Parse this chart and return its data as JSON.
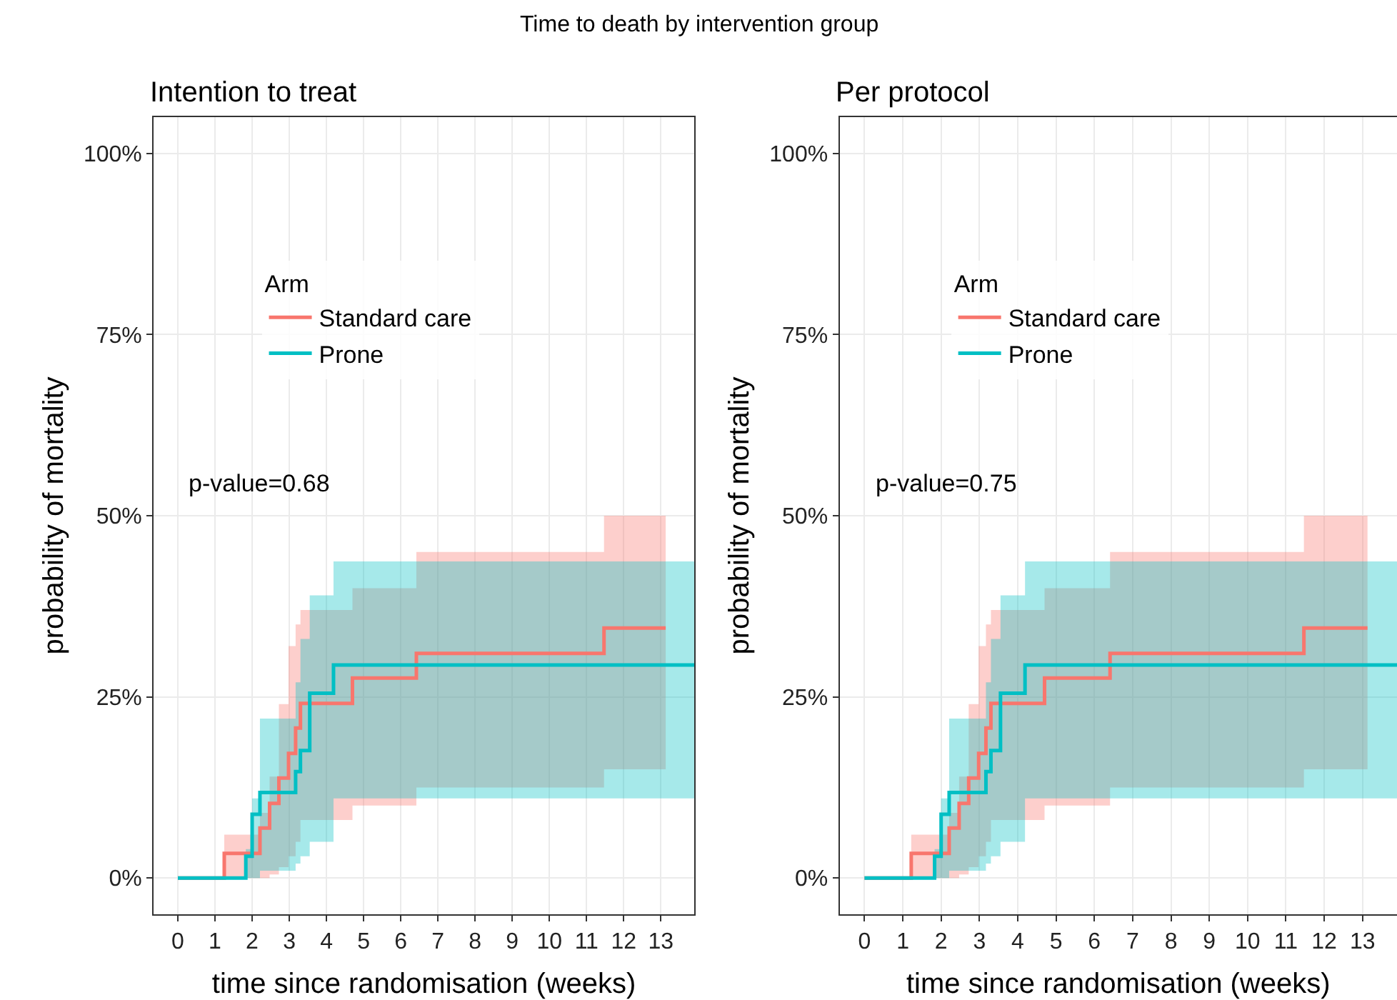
{
  "chart_data": [
    {
      "type": "step",
      "title": "Time to death by intervention group",
      "subtitle": "Intention to treat",
      "xlabel": "time since randomisation (weeks)",
      "ylabel": "probability of mortality",
      "legend_title": "Arm",
      "legend": "top left",
      "grid": true,
      "annotations": [
        "p-value=0.68"
      ],
      "xlim": [
        -0.65,
        13.9
      ],
      "xticks": [
        0,
        1,
        2,
        3,
        4,
        5,
        6,
        7,
        8,
        9,
        10,
        11,
        12,
        13
      ],
      "ylim": [
        -5,
        105
      ],
      "yticks": [
        {
          "value": 0,
          "label": "0%"
        },
        {
          "value": 25,
          "label": "25%"
        },
        {
          "value": 50,
          "label": "50%"
        },
        {
          "value": 75,
          "label": "75%"
        },
        {
          "value": 100,
          "label": "100%"
        }
      ],
      "series": [
        {
          "name": "Standard care",
          "color": "#f8766d",
          "x": [
            0,
            1.25,
            2.21,
            2.47,
            2.72,
            2.98,
            3.17,
            3.3,
            4.7,
            6.42,
            11.47,
            13.13
          ],
          "values": [
            0,
            3.4,
            6.9,
            10.3,
            13.8,
            17.2,
            20.7,
            24.1,
            27.6,
            31.0,
            34.5,
            34.5
          ],
          "lower": [
            0,
            0,
            0,
            0.5,
            1.5,
            3,
            5,
            8,
            10,
            12.5,
            15,
            15
          ],
          "upper": [
            0,
            6,
            9,
            14,
            24,
            32,
            35,
            37,
            40,
            45,
            50,
            50
          ]
        },
        {
          "name": "Prone",
          "color": "#00bfc4",
          "x": [
            0,
            1.83,
            2.0,
            2.21,
            3.17,
            3.3,
            3.55,
            4.19,
            13.9
          ],
          "values": [
            0,
            3,
            8.8,
            11.8,
            14.7,
            17.6,
            25.5,
            29.4,
            29.4
          ],
          "lower": [
            0,
            0,
            0,
            1,
            2,
            3,
            5,
            11,
            11
          ],
          "upper": [
            0,
            4,
            11,
            22,
            27,
            33,
            39,
            43.7,
            43.7
          ]
        }
      ]
    },
    {
      "type": "step",
      "subtitle": "Per protocol",
      "xlabel": "time since randomisation (weeks)",
      "ylabel": "probability of mortality",
      "legend_title": "Arm",
      "legend": "top left",
      "grid": true,
      "annotations": [
        "p-value=0.75"
      ],
      "xlim": [
        -0.65,
        13.9
      ],
      "xticks": [
        0,
        1,
        2,
        3,
        4,
        5,
        6,
        7,
        8,
        9,
        10,
        11,
        12,
        13
      ],
      "ylim": [
        -5,
        105
      ],
      "yticks": [
        {
          "value": 0,
          "label": "0%"
        },
        {
          "value": 25,
          "label": "25%"
        },
        {
          "value": 50,
          "label": "50%"
        },
        {
          "value": 75,
          "label": "75%"
        },
        {
          "value": 100,
          "label": "100%"
        }
      ],
      "series": [
        {
          "name": "Standard care",
          "color": "#f8766d",
          "x": [
            0,
            1.22,
            2.21,
            2.47,
            2.72,
            2.98,
            3.17,
            3.3,
            4.7,
            6.41,
            11.47,
            13.13
          ],
          "values": [
            0,
            3.4,
            6.9,
            10.3,
            13.8,
            17.2,
            20.7,
            24.1,
            27.6,
            31.0,
            34.5,
            34.5
          ],
          "lower": [
            0,
            0,
            0,
            0.5,
            1.5,
            3,
            5,
            8,
            10,
            12.5,
            15,
            15
          ],
          "upper": [
            0,
            6,
            9,
            14,
            24,
            32,
            35,
            37,
            40,
            45,
            50,
            50
          ]
        },
        {
          "name": "Prone",
          "color": "#00bfc4",
          "x": [
            0,
            1.83,
            2.0,
            2.21,
            3.17,
            3.3,
            3.55,
            4.19,
            13.9
          ],
          "values": [
            0,
            3,
            8.8,
            11.8,
            14.7,
            17.6,
            25.5,
            29.4,
            29.4
          ],
          "lower": [
            0,
            0,
            0,
            1,
            2,
            3,
            5,
            11,
            11
          ],
          "upper": [
            0,
            4,
            11,
            22,
            27,
            33,
            39,
            43.7,
            43.7
          ]
        }
      ]
    }
  ]
}
